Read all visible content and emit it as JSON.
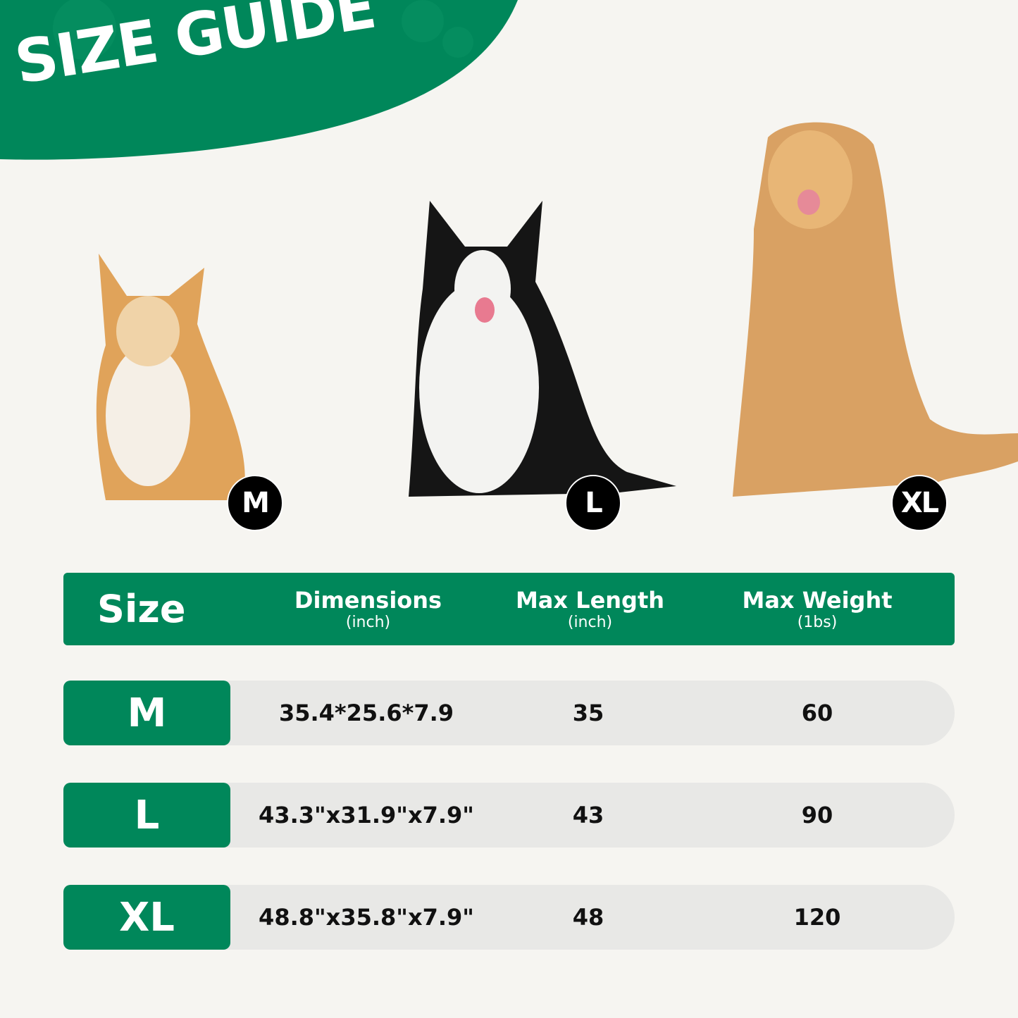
{
  "banner": {
    "title": "SIZE GUIDE"
  },
  "colors": {
    "brand_green": "#00875a",
    "background": "#f6f5f1",
    "row_gray": "#e8e8e6"
  },
  "dogs": [
    {
      "badge": "M",
      "breed_icon": "corgi-image"
    },
    {
      "badge": "L",
      "breed_icon": "border-collie-image"
    },
    {
      "badge": "XL",
      "breed_icon": "golden-retriever-image"
    }
  ],
  "table": {
    "headers": [
      {
        "label": "Size",
        "unit": ""
      },
      {
        "label": "Dimensions",
        "unit": "(inch)"
      },
      {
        "label": "Max Length",
        "unit": "(inch)"
      },
      {
        "label": "Max Weight",
        "unit": "(1bs)"
      }
    ],
    "rows": [
      {
        "size": "M",
        "dimensions": "35.4*25.6*7.9",
        "max_length": "35",
        "max_weight": "60"
      },
      {
        "size": "L",
        "dimensions": "43.3\"x31.9\"x7.9\"",
        "max_length": "43",
        "max_weight": "90"
      },
      {
        "size": "XL",
        "dimensions": "48.8\"x35.8\"x7.9\"",
        "max_length": "48",
        "max_weight": "120"
      }
    ]
  }
}
